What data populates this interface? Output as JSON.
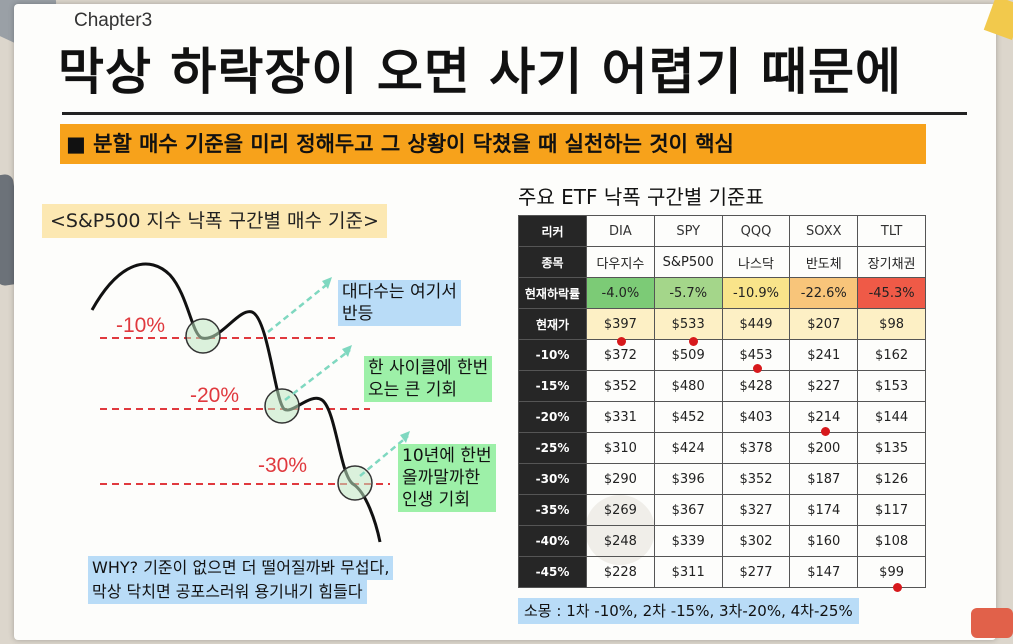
{
  "header": {
    "chapter": "Chapter3",
    "title": "막상 하락장이 오면 사기 어렵기 때문에",
    "banner": "■ 분할 매수 기준을 미리 정해두고 그 상황이 닥쳤을 때 실천하는 것이 핵심"
  },
  "left": {
    "section_label": "<S&P500 지수 낙폭 구간별 매수 기준>",
    "levels": [
      "-10%",
      "-20%",
      "-30%"
    ],
    "notes": [
      {
        "lines": [
          "대다수는 여기서",
          "반등"
        ]
      },
      {
        "lines": [
          "한 사이클에 한번",
          "오는 큰 기회"
        ]
      },
      {
        "lines": [
          "10년에 한번",
          "올까말까한",
          "인생 기회"
        ]
      }
    ],
    "why": [
      "WHY? 기준이 없으면 더 떨어질까봐 무섭다,",
      "막상 닥치면 공포스러워 용기내기 힘들다"
    ]
  },
  "table": {
    "title": "주요 ETF 낙폭 구간별 기준표",
    "header_row_label": "리커",
    "tickers": [
      "DIA",
      "SPY",
      "QQQ",
      "SOXX",
      "TLT"
    ],
    "name_row_label": "종목",
    "names": [
      "다우지수",
      "S&P500",
      "나스닥",
      "반도체",
      "장기채권"
    ],
    "drawdown_row_label": "현재하락률",
    "drawdowns": [
      "-4.0%",
      "-5.7%",
      "-10.9%",
      "-22.6%",
      "-45.3%"
    ],
    "price_row_label": "현재가",
    "prices": [
      "$397",
      "$533",
      "$449",
      "$207",
      "$98"
    ],
    "rows": [
      {
        "label": "-10%",
        "values": [
          "$372",
          "$509",
          "$453",
          "$241",
          "$162"
        ]
      },
      {
        "label": "-15%",
        "values": [
          "$352",
          "$480",
          "$428",
          "$227",
          "$153"
        ]
      },
      {
        "label": "-20%",
        "values": [
          "$331",
          "$452",
          "$403",
          "$214",
          "$144"
        ]
      },
      {
        "label": "-25%",
        "values": [
          "$310",
          "$424",
          "$378",
          "$200",
          "$135"
        ]
      },
      {
        "label": "-30%",
        "values": [
          "$290",
          "$396",
          "$352",
          "$187",
          "$126"
        ]
      },
      {
        "label": "-35%",
        "values": [
          "$269",
          "$367",
          "$327",
          "$174",
          "$117"
        ]
      },
      {
        "label": "-40%",
        "values": [
          "$248",
          "$339",
          "$302",
          "$160",
          "$108"
        ]
      },
      {
        "label": "-45%",
        "values": [
          "$228",
          "$311",
          "$277",
          "$147",
          "$99"
        ]
      }
    ],
    "footer": "소몽 : 1차 -10%, 2차 -15%, 3차-20%, 4차-25%"
  },
  "colors": {
    "banner": "#f7a21b",
    "dashed_line": "#e0393e",
    "arrow": "#7fd8c0",
    "marker": "#d7191c"
  }
}
